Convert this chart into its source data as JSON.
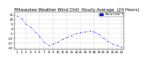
{
  "title": "Milwaukee Weather Wind Chill  Hourly Average  (24 Hours)",
  "background_color": "#ffffff",
  "plot_bg_color": "#ffffff",
  "line_color": "#0000ff",
  "grid_color": "#bbbbbb",
  "hours": [
    1,
    2,
    3,
    4,
    5,
    6,
    7,
    8,
    9,
    10,
    11,
    12,
    13,
    14,
    15,
    16,
    17,
    18,
    19,
    20,
    21,
    22,
    23,
    24
  ],
  "values": [
    14,
    11,
    5,
    2,
    -3,
    -8,
    -14,
    -18,
    -16,
    -14,
    -11,
    -9,
    -7,
    -5,
    -4,
    -3,
    -2,
    -3,
    -6,
    -10,
    -13,
    -16,
    -18,
    -19
  ],
  "ylim": [
    -22,
    18
  ],
  "xlim": [
    0.5,
    24.5
  ],
  "legend_label": "Wind Chill °F",
  "title_fontsize": 3.8,
  "tick_fontsize": 2.8,
  "legend_fontsize": 2.5,
  "yticks": [
    -20,
    -15,
    -10,
    -5,
    0,
    5,
    10,
    15
  ],
  "title_color": "#000000"
}
